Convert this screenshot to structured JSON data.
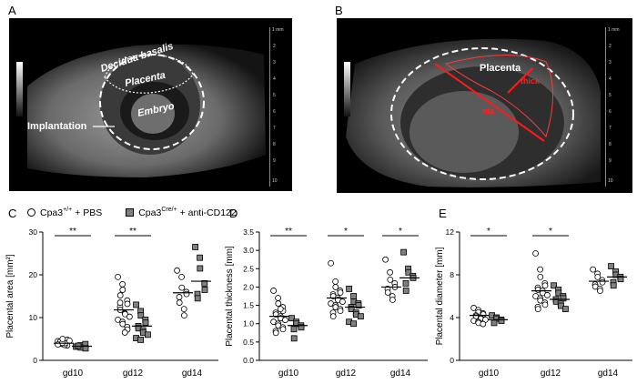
{
  "panels": {
    "A": {
      "letter": "A",
      "labels": {
        "decidua": "Decidua basalis",
        "placenta": "Placenta",
        "embryo": "Embryo",
        "implantation": "Implantation"
      },
      "scale": {
        "top": "1 mm",
        "ticks": [
          "2",
          "3",
          "4",
          "5",
          "6",
          "7",
          "8",
          "9",
          "10"
        ]
      }
    },
    "B": {
      "letter": "B",
      "labels": {
        "placenta": "Placenta",
        "thick": "thick",
        "dia": "dia"
      },
      "scale": {
        "top": "1 mm",
        "ticks": [
          "2",
          "3",
          "4",
          "5",
          "6",
          "7",
          "8",
          "9",
          "10"
        ]
      }
    },
    "C": "C",
    "D": "D",
    "E": "E"
  },
  "legend": {
    "pbs": {
      "prefix": "Cpa3",
      "sup": "+/+",
      "suffix": " + PBS"
    },
    "treated": {
      "prefix": "Cpa3",
      "sup": "Cre/+",
      "suffix": " + anti-CD122"
    }
  },
  "colors": {
    "pbs_fill": "#ffffff",
    "treated_fill": "#808080",
    "outline": "#000000",
    "annot_red": "#ff0000"
  },
  "chart_data": [
    {
      "type": "scatter",
      "panel": "C",
      "ylabel": "Placental area [mm²]",
      "ylim": [
        0,
        30
      ],
      "yticks": [
        0,
        10,
        20,
        30
      ],
      "categories": [
        "gd10",
        "gd12",
        "gd14"
      ],
      "series": [
        {
          "name": "Cpa3+/+ + PBS",
          "marker": "circle",
          "values": [
            [
              4.5,
              3.8,
              4.2,
              3.5,
              4.8,
              3.9,
              4.4,
              3.6,
              4.0,
              4.6,
              3.7,
              4.1,
              5.0
            ],
            [
              19.5,
              17.8,
              16.5,
              14.0,
              13.2,
              12.5,
              11.8,
              11.0,
              10.8,
              10.2,
              9.5,
              9.0,
              8.5,
              7.8,
              7.2,
              13.5,
              15.2,
              6.5
            ],
            [
              21.0,
              19.5,
              17.0,
              16.0,
              15.5,
              14.8,
              13.5,
              12.0,
              10.5
            ]
          ],
          "means": [
            4.0,
            11.8,
            15.8
          ]
        },
        {
          "name": "Cpa3Cre/+ + anti-CD122",
          "marker": "square",
          "values": [
            [
              3.2,
              3.5,
              3.0,
              3.8,
              2.8,
              3.4
            ],
            [
              13.0,
              11.5,
              10.5,
              9.5,
              8.8,
              8.0,
              7.5,
              7.0,
              6.5,
              6.0,
              5.2,
              4.8
            ],
            [
              26.5,
              24.0,
              21.5,
              18.0,
              16.5,
              15.5,
              14.5
            ]
          ],
          "means": [
            3.3,
            8.0,
            18.5
          ]
        }
      ],
      "significance": [
        {
          "category": "gd10",
          "label": "**"
        },
        {
          "category": "gd12",
          "label": "**"
        }
      ]
    },
    {
      "type": "scatter",
      "panel": "D",
      "ylabel": "Placental thickness [mm]",
      "ylim": [
        0.0,
        3.5
      ],
      "yticks": [
        "0.0",
        "0.5",
        "1.0",
        "1.5",
        "2.0",
        "2.5",
        "3.0",
        "3.5"
      ],
      "categories": [
        "gd10",
        "gd12",
        "gd14"
      ],
      "series": [
        {
          "name": "Cpa3+/+ + PBS",
          "marker": "circle",
          "values": [
            [
              1.9,
              1.7,
              1.55,
              1.45,
              1.35,
              1.3,
              1.25,
              1.2,
              1.15,
              1.1,
              1.05,
              1.0,
              0.95,
              0.9,
              0.85,
              0.8,
              0.75,
              1.4
            ],
            [
              2.65,
              2.15,
              2.0,
              1.9,
              1.85,
              1.8,
              1.75,
              1.7,
              1.65,
              1.6,
              1.55,
              1.5,
              1.45,
              1.4,
              1.35,
              1.3,
              1.2
            ],
            [
              2.75,
              2.4,
              2.2,
              2.1,
              2.0,
              1.95,
              1.85,
              1.75,
              1.65
            ]
          ],
          "means": [
            1.2,
            1.7,
            2.0
          ]
        },
        {
          "name": "Cpa3Cre/+ + anti-CD122",
          "marker": "square",
          "values": [
            [
              1.15,
              1.05,
              1.0,
              0.95,
              0.9,
              0.85,
              0.6
            ],
            [
              1.95,
              1.75,
              1.6,
              1.55,
              1.5,
              1.45,
              1.4,
              1.3,
              1.25,
              1.2,
              1.05,
              1.0
            ],
            [
              2.95,
              2.5,
              2.4,
              2.3,
              2.25,
              2.1,
              1.9
            ]
          ],
          "means": [
            0.95,
            1.45,
            2.25
          ]
        }
      ],
      "significance": [
        {
          "category": "gd10",
          "label": "**"
        },
        {
          "category": "gd12",
          "label": "*"
        },
        {
          "category": "gd14",
          "label": "*"
        }
      ]
    },
    {
      "type": "scatter",
      "panel": "E",
      "ylabel": "Placental diameter [mm]",
      "ylim": [
        0,
        12
      ],
      "yticks": [
        0,
        4,
        8,
        12
      ],
      "categories": [
        "gd10",
        "gd12",
        "gd14"
      ],
      "series": [
        {
          "name": "Cpa3+/+ + PBS",
          "marker": "circle",
          "values": [
            [
              4.9,
              4.7,
              4.5,
              4.4,
              4.3,
              4.2,
              4.1,
              4.0,
              3.9,
              3.8,
              3.7,
              3.6,
              3.5,
              3.4
            ],
            [
              10.0,
              8.5,
              7.8,
              7.2,
              7.0,
              6.8,
              6.6,
              6.5,
              6.3,
              6.1,
              6.0,
              5.8,
              5.6,
              5.4,
              5.2,
              5.0,
              4.8
            ],
            [
              8.5,
              8.1,
              7.8,
              7.5,
              7.3,
              7.1,
              6.9,
              6.7,
              6.5
            ]
          ],
          "means": [
            4.2,
            6.5,
            7.4
          ]
        },
        {
          "name": "Cpa3Cre/+ + anti-CD122",
          "marker": "square",
          "values": [
            [
              4.2,
              4.0,
              3.9,
              3.8,
              3.7,
              3.5
            ],
            [
              7.0,
              6.6,
              6.3,
              6.0,
              5.8,
              5.7,
              5.5,
              5.3,
              5.1,
              4.8
            ],
            [
              8.8,
              8.3,
              8.0,
              7.8,
              7.6,
              7.3,
              7.0
            ]
          ],
          "means": [
            3.8,
            5.7,
            7.8
          ]
        }
      ],
      "significance": [
        {
          "category": "gd10",
          "label": "*"
        },
        {
          "category": "gd12",
          "label": "*"
        }
      ]
    }
  ]
}
